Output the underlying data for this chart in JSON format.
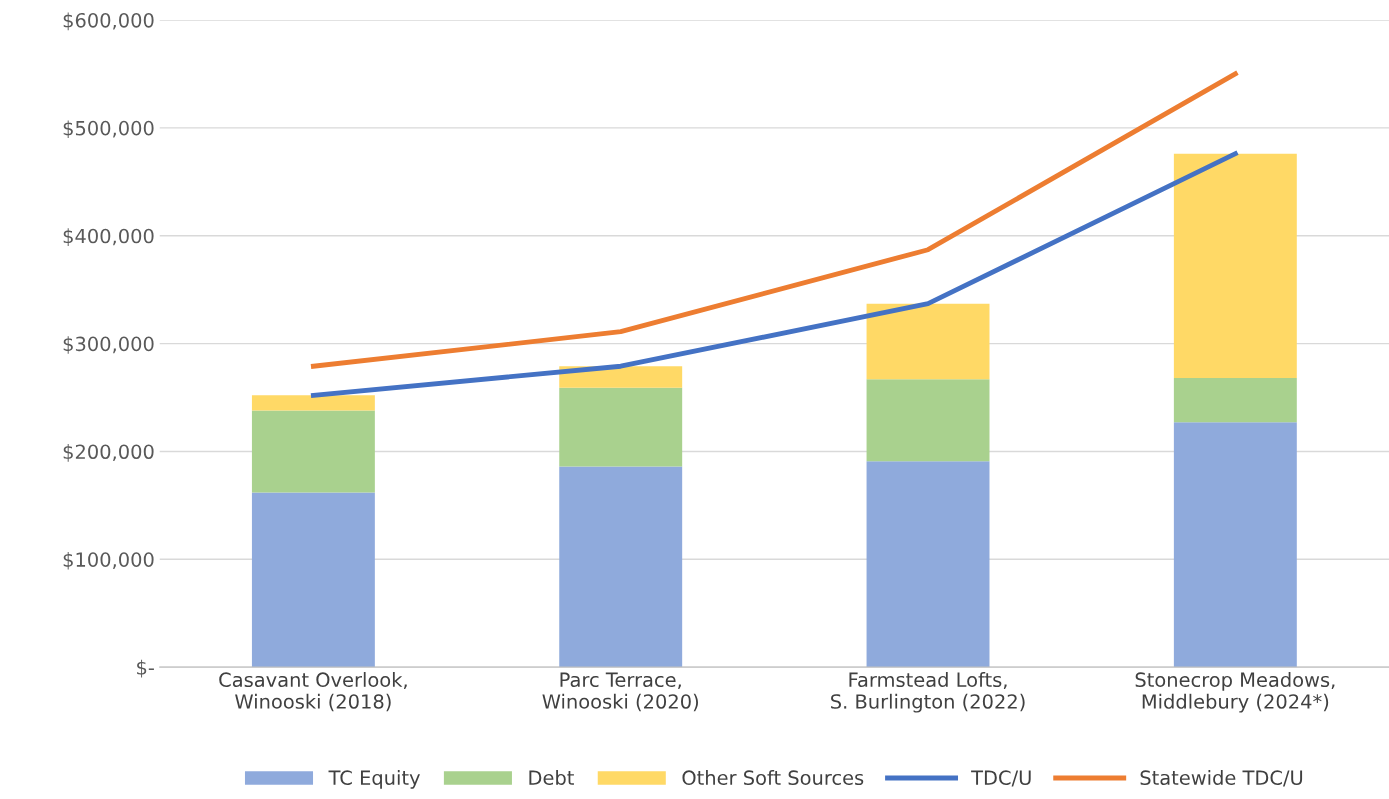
{
  "chart_data": {
    "type": "bar",
    "stacked": true,
    "categories": [
      "Casavant Overlook,\nWinooski (2018)",
      "Parc Terrace,\nWinooski (2020)",
      "Farmstead Lofts,\nS. Burlington (2022)",
      "Stonecrop Meadows,\nMiddlebury (2024*)"
    ],
    "series": [
      {
        "name": "TC Equity",
        "color": "#8faadc",
        "values": [
          162000,
          186000,
          191000,
          227000
        ]
      },
      {
        "name": "Debt",
        "color": "#a9d18e",
        "values": [
          76000,
          73000,
          76000,
          41000
        ]
      },
      {
        "name": "Other Soft Sources",
        "color": "#ffd966",
        "values": [
          14000,
          20000,
          70000,
          208000
        ]
      },
      {
        "name": "TDC/U",
        "type": "line",
        "color": "#4472c4",
        "values": [
          252000,
          279000,
          337000,
          476000
        ]
      },
      {
        "name": "Statewide TDC/U",
        "type": "line",
        "color": "#ed7d31",
        "values": [
          279000,
          311000,
          387000,
          550000
        ]
      }
    ],
    "ylim": [
      0,
      600000
    ],
    "yticks": [
      {
        "value": 0,
        "label": "$-"
      },
      {
        "value": 100000,
        "label": "$100,000"
      },
      {
        "value": 200000,
        "label": "$200,000"
      },
      {
        "value": 300000,
        "label": "$300,000"
      },
      {
        "value": 400000,
        "label": "$400,000"
      },
      {
        "value": 500000,
        "label": "$500,000"
      },
      {
        "value": 600000,
        "label": "$600,000"
      }
    ],
    "grid": "y",
    "legend": "bottom",
    "marker": "none",
    "line_style": "solid"
  }
}
